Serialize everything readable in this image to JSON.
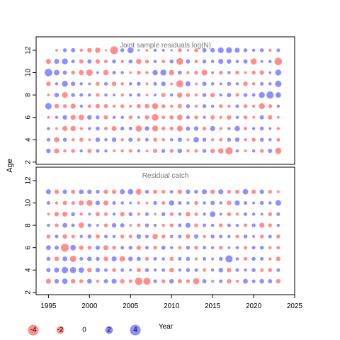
{
  "chart_data": {
    "type": "bubble",
    "ylabel": "Age",
    "xlabel": "Year",
    "xlim": [
      1993.5,
      2025
    ],
    "xticks": [
      1995,
      2000,
      2005,
      2010,
      2015,
      2020,
      2025
    ],
    "colors": {
      "positive": "#3333ff",
      "negative": "#ff3333"
    },
    "years_start": 1995,
    "years_end": 2023,
    "panels": [
      {
        "id": "joint",
        "title": "Joint sample residuals log(N)",
        "ylim": [
          1.8,
          13.2
        ],
        "yticks": [
          2,
          4,
          6,
          8,
          10,
          12
        ],
        "ages": [
          12,
          11,
          10,
          9,
          8,
          7,
          6,
          5,
          4,
          3
        ],
        "residuals": [
          [
            0,
            -0.3,
            0.6,
            0.7,
            -0.4,
            -0.8,
            -1.1,
            -0.2,
            -2.4,
            0.6,
            1.4,
            0.2,
            -0.3,
            0.4,
            0.3,
            0.2,
            -0.6,
            0.2,
            -0.6,
            0.7,
            0.8,
            1.3,
            1.4,
            1.0,
            0.6,
            0.4,
            0.6,
            -0.4,
            0.5
          ],
          [
            -1.0,
            1.0,
            1.4,
            0.5,
            -0.7,
            0.7,
            -0.8,
            -0.5,
            0.6,
            -0.4,
            0.6,
            -1.1,
            -0.6,
            0.4,
            -0.5,
            0.6,
            -1.8,
            0.7,
            -0.5,
            0.6,
            0.4,
            1.0,
            0.8,
            0.4,
            0.7,
            -1.5,
            0.3,
            0.4,
            -2.2
          ],
          [
            2.2,
            1.2,
            0.7,
            -0.6,
            -1.0,
            -1.6,
            0.3,
            -1.1,
            0.5,
            0.4,
            -0.3,
            -0.6,
            -0.4,
            1.1,
            1.4,
            -1.1,
            0.6,
            -0.4,
            -0.6,
            -1.3,
            0.3,
            -0.6,
            0.4,
            -0.6,
            -0.3,
            -0.6,
            -0.8,
            0.3,
            1.4
          ],
          [
            -0.8,
            0.4,
            1.4,
            0.7,
            0.4,
            0.3,
            -0.6,
            0.5,
            -0.8,
            -0.4,
            0.4,
            0.6,
            -0.3,
            0.5,
            0.8,
            -0.3,
            -2.0,
            1.0,
            -0.3,
            0.7,
            0.4,
            0.3,
            0.6,
            0.4,
            -0.8,
            -0.4,
            0.5,
            0.4,
            1.6
          ],
          [
            -0.3,
            0.8,
            -1.3,
            0.6,
            0.5,
            0.4,
            -0.5,
            0.4,
            0.3,
            -0.4,
            0.4,
            0.5,
            -0.3,
            0.3,
            -0.7,
            0.4,
            -1.1,
            -0.6,
            -0.4,
            0.6,
            -0.8,
            0.4,
            0.7,
            -0.5,
            0.6,
            0.5,
            1.4,
            2.0,
            1.2
          ],
          [
            1.6,
            -0.8,
            -0.6,
            -1.0,
            0.4,
            -0.5,
            -0.8,
            -0.7,
            -0.4,
            -0.6,
            -0.4,
            -0.7,
            -0.8,
            -1.5,
            -0.6,
            -0.4,
            -0.7,
            0.6,
            -0.4,
            0.6,
            0.4,
            -0.6,
            -0.4,
            0.5,
            -0.6,
            -0.4,
            -1.4,
            -0.6,
            0.4
          ],
          [
            -0.3,
            0.4,
            0.8,
            -1.0,
            -1.2,
            0.8,
            0.6,
            -0.7,
            0.4,
            0.4,
            -0.6,
            0.3,
            -0.7,
            -1.8,
            -0.5,
            -0.7,
            -1.2,
            0.5,
            -0.6,
            0.4,
            -0.7,
            -0.4,
            -0.8,
            0.4,
            -0.6,
            -0.3,
            0.7,
            -0.8,
            -0.3
          ],
          [
            0.4,
            -0.3,
            -1.0,
            -1.1,
            -0.4,
            0.4,
            0.6,
            -0.5,
            -1.0,
            0.6,
            0.5,
            -1.5,
            0.8,
            -1.4,
            -0.6,
            -0.6,
            -1.3,
            0.7,
            0.8,
            -0.6,
            1.0,
            -0.4,
            0.4,
            1.1,
            -0.5,
            0.4,
            0.6,
            0.3,
            -0.4
          ],
          [
            0.5,
            -1.1,
            0.6,
            -0.4,
            -0.6,
            -0.3,
            0.8,
            0.4,
            0.8,
            -0.4,
            0.7,
            -0.5,
            0.5,
            -0.6,
            -0.4,
            0.4,
            0.7,
            -0.3,
            1.2,
            0.6,
            -0.4,
            -0.5,
            0.6,
            0.8,
            -0.4,
            -0.6,
            0.6,
            0.4,
            -0.5
          ],
          [
            0.8,
            -1.0,
            -0.4,
            -0.6,
            0.4,
            -0.7,
            0.5,
            0.4,
            -0.3,
            -0.4,
            -0.5,
            0.4,
            -0.3,
            -0.7,
            0.6,
            -0.6,
            0.8,
            -0.4,
            -0.5,
            0.6,
            -0.8,
            -1.1,
            -2.0,
            0.4,
            -0.3,
            0.4,
            -0.6,
            0.7,
            -1.5
          ]
        ]
      },
      {
        "id": "catch",
        "title": "Residual catch",
        "ylim": [
          1.8,
          13.2
        ],
        "yticks": [
          2,
          4,
          6,
          8,
          10,
          12
        ],
        "ages": [
          11,
          10,
          9,
          8,
          7,
          6,
          5,
          4,
          3
        ],
        "residuals": [
          [
            1.0,
            -0.8,
            0.8,
            -0.7,
            0.9,
            0.8,
            0.6,
            -0.8,
            -0.8,
            1.0,
            1.2,
            -1.3,
            0.6,
            -0.7,
            -0.6,
            0.5,
            -0.8,
            0.8,
            0.6,
            1.0,
            -0.8,
            1.0,
            -0.6,
            -0.7,
            1.2,
            -0.8,
            0.8,
            -0.6,
            -0.3
          ],
          [
            0.5,
            -0.4,
            -0.7,
            -0.5,
            -1.0,
            -1.4,
            0.8,
            -1.0,
            0.5,
            0.4,
            0.3,
            -0.4,
            -0.3,
            0.6,
            -0.5,
            1.1,
            0.5,
            0.4,
            -0.6,
            0.4,
            0.7,
            0.4,
            -0.8,
            1.0,
            0.5,
            0.3,
            0.6,
            0.4,
            1.3
          ],
          [
            -0.3,
            -0.8,
            -1.0,
            0.6,
            -0.4,
            0.3,
            -0.7,
            -0.5,
            0.4,
            -0.8,
            0.6,
            -0.4,
            0.5,
            -0.3,
            0.6,
            -0.5,
            0.4,
            -0.8,
            -0.5,
            0.4,
            1.2,
            0.3,
            -0.6,
            -0.4,
            0.5,
            0.4,
            0.3,
            -0.6,
            0.5
          ],
          [
            0.4,
            -0.6,
            0.9,
            0.5,
            -1.2,
            0.5,
            0.3,
            -0.6,
            0.8,
            0.7,
            -0.3,
            -0.5,
            0.6,
            0.4,
            -0.4,
            -0.6,
            0.5,
            1.0,
            -0.6,
            0.5,
            0.4,
            -0.6,
            0.5,
            0.4,
            -0.5,
            0.6,
            -1.0,
            -0.6,
            0.4
          ],
          [
            -0.6,
            0.5,
            -0.8,
            -0.5,
            0.4,
            0.6,
            -0.7,
            0.5,
            0.4,
            -0.6,
            -0.5,
            0.8,
            0.5,
            -1.1,
            -0.6,
            0.4,
            0.5,
            -0.8,
            0.7,
            -0.4,
            0.6,
            0.5,
            0.4,
            -0.5,
            0.6,
            0.3,
            -0.6,
            0.5,
            -0.6
          ],
          [
            0.9,
            0.7,
            -2.5,
            1.2,
            -0.8,
            -0.6,
            0.7,
            -1.0,
            -0.6,
            0.5,
            0.6,
            -0.8,
            0.5,
            -0.6,
            0.7,
            0.4,
            -0.5,
            0.6,
            -0.6,
            0.5,
            0.4,
            -0.6,
            0.3,
            0.4,
            -0.5,
            0.5,
            0.6,
            -0.4,
            -0.5
          ],
          [
            0.6,
            -0.8,
            0.9,
            -1.6,
            0.5,
            0.8,
            0.6,
            -0.8,
            1.0,
            -1.2,
            0.8,
            0.7,
            -0.6,
            0.5,
            0.4,
            -0.6,
            0.5,
            0.6,
            -0.4,
            0.5,
            0.3,
            0.6,
            2.0,
            0.4,
            -0.5,
            0.6,
            0.5,
            -0.4,
            -0.8
          ],
          [
            0.7,
            1.0,
            1.6,
            1.5,
            1.2,
            -0.8,
            0.8,
            0.5,
            -0.6,
            0.5,
            0.3,
            -0.7,
            0.6,
            0.4,
            0.5,
            -0.8,
            0.4,
            0.6,
            0.5,
            -0.5,
            0.4,
            0.8,
            -0.8,
            0.5,
            0.4,
            0.6,
            -0.5,
            -0.6,
            0.5
          ],
          [
            -1.0,
            0.8,
            1.2,
            -0.8,
            -0.6,
            0.9,
            -0.4,
            0.7,
            1.0,
            -0.8,
            -0.5,
            -2.2,
            -2.0,
            0.5,
            -0.6,
            0.8,
            -0.7,
            -0.6,
            -1.5,
            0.7,
            -0.4,
            0.5,
            -0.8,
            -0.4,
            0.9,
            0.5,
            0.8,
            0.7,
            -0.8
          ]
        ]
      }
    ],
    "legend": {
      "values": [
        -4,
        -2,
        0,
        2,
        4
      ],
      "labels": [
        "-4",
        "-2",
        "0",
        "2",
        "4"
      ],
      "title": "Year"
    }
  }
}
